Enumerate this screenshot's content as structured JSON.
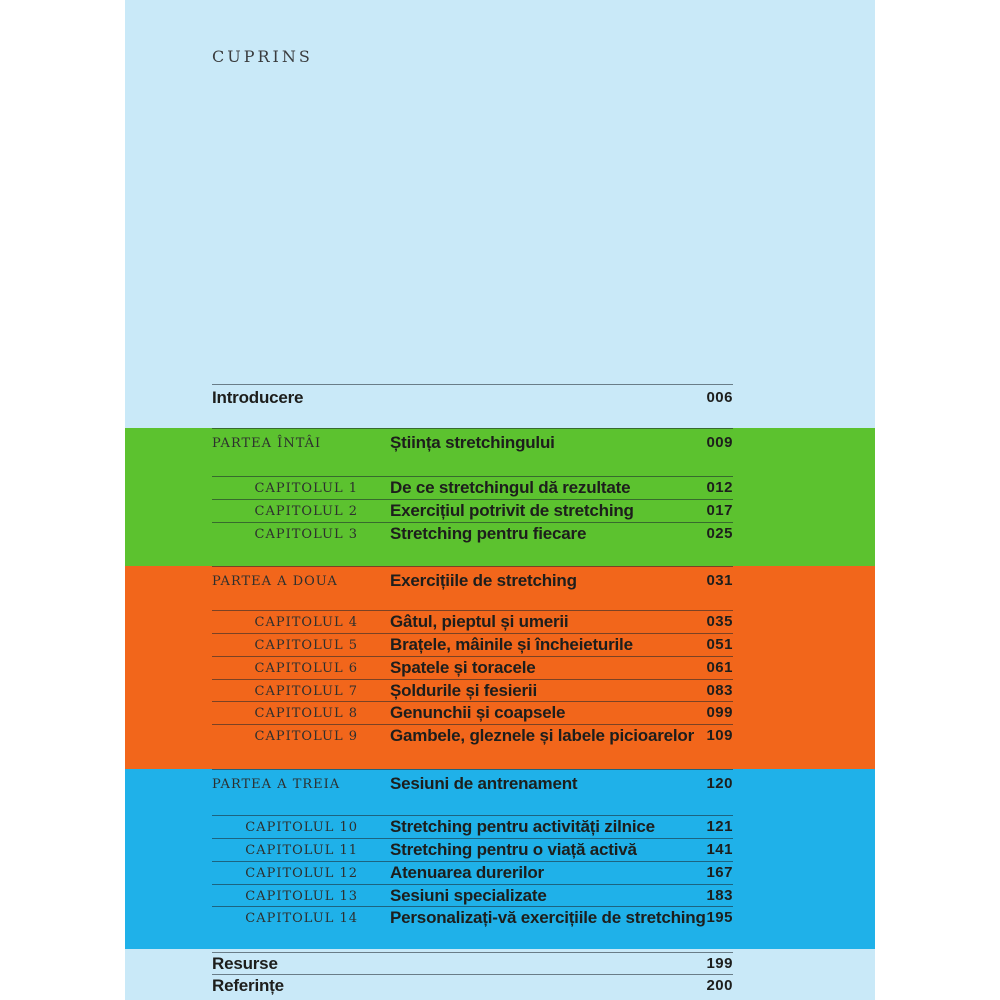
{
  "header": {
    "title": "CUPRINS"
  },
  "colors": {
    "margin_bg": "#ffffff",
    "paper": "#c9e9f8",
    "green": "#5cc22f",
    "orange": "#f2661b",
    "blue": "#1fb1e9",
    "title_text": "#1d1e1c",
    "label_text": "#2d2f2e"
  },
  "intro": {
    "label": "Introducere",
    "page": "006"
  },
  "parts": [
    {
      "label": "PARTEA ÎNTÂI",
      "title": "Știința stretchingului",
      "page": "009",
      "chapters": [
        {
          "label": "CAPITOLUL 1",
          "title": "De ce stretchingul dă rezultate",
          "page": "012"
        },
        {
          "label": "CAPITOLUL 2",
          "title": "Exercițiul potrivit de stretching",
          "page": "017"
        },
        {
          "label": "CAPITOLUL 3",
          "title": "Stretching pentru fiecare",
          "page": "025"
        }
      ]
    },
    {
      "label": "PARTEA A DOUA",
      "title": "Exercițiile de stretching",
      "page": "031",
      "chapters": [
        {
          "label": "CAPITOLUL 4",
          "title": "Gâtul, pieptul și umerii",
          "page": "035"
        },
        {
          "label": "CAPITOLUL 5",
          "title": "Brațele, mâinile și încheieturile",
          "page": "051"
        },
        {
          "label": "CAPITOLUL 6",
          "title": "Spatele și toracele",
          "page": "061"
        },
        {
          "label": "CAPITOLUL 7",
          "title": "Șoldurile și fesierii",
          "page": "083"
        },
        {
          "label": "CAPITOLUL 8",
          "title": "Genunchii și coapsele",
          "page": "099"
        },
        {
          "label": "CAPITOLUL 9",
          "title": "Gambele, gleznele și labele picioarelor",
          "page": "109"
        }
      ]
    },
    {
      "label": "PARTEA A TREIA",
      "title": "Sesiuni de antrenament",
      "page": "120",
      "chapters": [
        {
          "label": "CAPITOLUL 10",
          "title": "Stretching pentru activități zilnice",
          "page": "121"
        },
        {
          "label": "CAPITOLUL 11",
          "title": "Stretching pentru o viață activă",
          "page": "141"
        },
        {
          "label": "CAPITOLUL 12",
          "title": "Atenuarea durerilor",
          "page": "167"
        },
        {
          "label": "CAPITOLUL 13",
          "title": "Sesiuni specializate",
          "page": "183"
        },
        {
          "label": "CAPITOLUL 14",
          "title": "Personalizați-vă exercițiile de stretching",
          "page": "195"
        }
      ]
    }
  ],
  "footer": [
    {
      "label": "Resurse",
      "page": "199"
    },
    {
      "label": "Referințe",
      "page": "200"
    }
  ]
}
